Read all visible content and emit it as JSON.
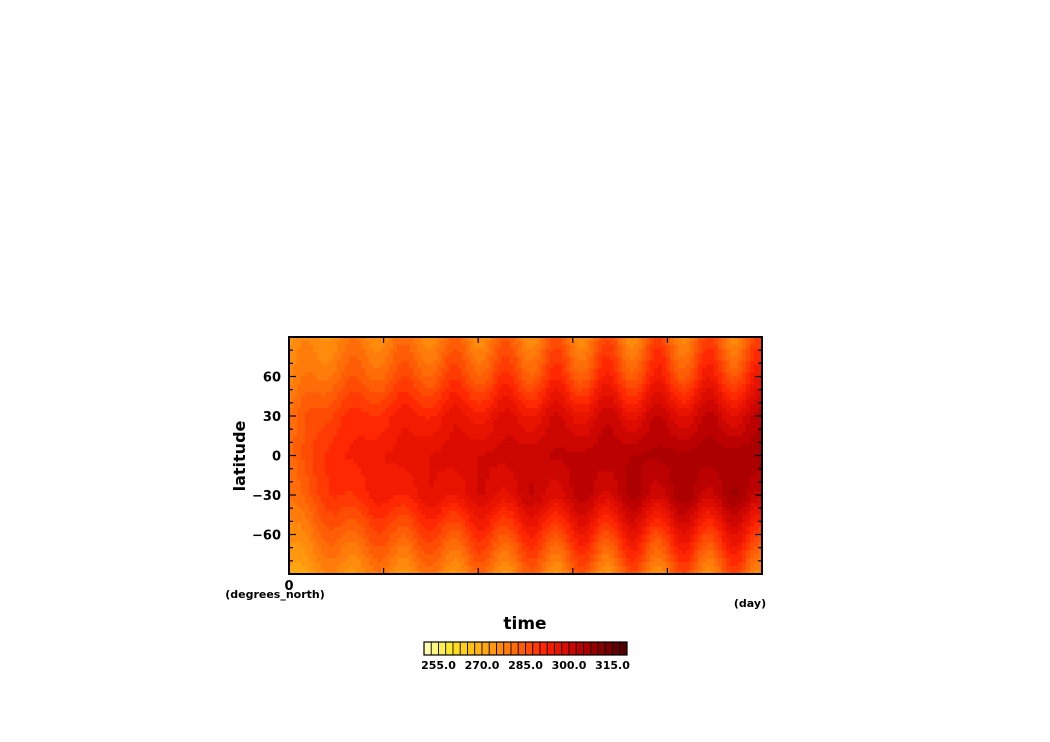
{
  "chart_data": {
    "type": "heatmap",
    "title": "",
    "xlabel": "time",
    "ylabel": "latitude",
    "x_unit": "(day)",
    "y_unit": "(degrees_north)",
    "xlim": [
      0,
      1
    ],
    "ylim": [
      -90,
      90
    ],
    "x_ticks": [
      0
    ],
    "y_ticks": [
      60,
      30,
      0,
      -30,
      -60
    ],
    "colorbar": {
      "min": 250,
      "max": 320,
      "step": 2.5,
      "ticks": [
        "255.0",
        "270.0",
        "285.0",
        "300.0",
        "315.0"
      ],
      "colors_low_to_high": [
        "#fffcb0",
        "#fff880",
        "#fff050",
        "#ffe830",
        "#ffdc20",
        "#ffd018",
        "#ffc214",
        "#ffb412",
        "#ffa610",
        "#ff980e",
        "#ff8a0c",
        "#ff7c0a",
        "#ff6c08",
        "#ff5c06",
        "#ff4c04",
        "#ff3a02",
        "#ff2800",
        "#f41c00",
        "#e81400",
        "#dc0c00",
        "#cc0600",
        "#bc0200",
        "#ac0000",
        "#9a0000",
        "#880000",
        "#760000",
        "#640000",
        "#520000"
      ]
    },
    "field_description_values": {
      "x": [
        0.0,
        0.05,
        0.1,
        0.2,
        0.35,
        0.5,
        0.65,
        0.8,
        1.0
      ],
      "lat": [
        -90,
        -60,
        -30,
        0,
        30,
        60,
        90
      ],
      "temperature_K": [
        [
          272,
          274,
          276,
          277,
          278,
          279,
          280,
          281,
          282
        ],
        [
          276,
          280,
          283,
          285,
          287,
          289,
          291,
          292,
          293
        ],
        [
          280,
          286,
          290,
          293,
          297,
          300,
          302,
          304,
          305
        ],
        [
          281,
          288,
          292,
          295,
          299,
          302,
          304,
          306,
          307
        ],
        [
          280,
          286,
          289,
          292,
          295,
          297,
          299,
          300,
          301
        ],
        [
          276,
          280,
          282,
          284,
          286,
          287,
          288,
          289,
          290
        ],
        [
          274,
          276,
          277,
          278,
          279,
          280,
          281,
          282,
          282
        ]
      ]
    }
  }
}
